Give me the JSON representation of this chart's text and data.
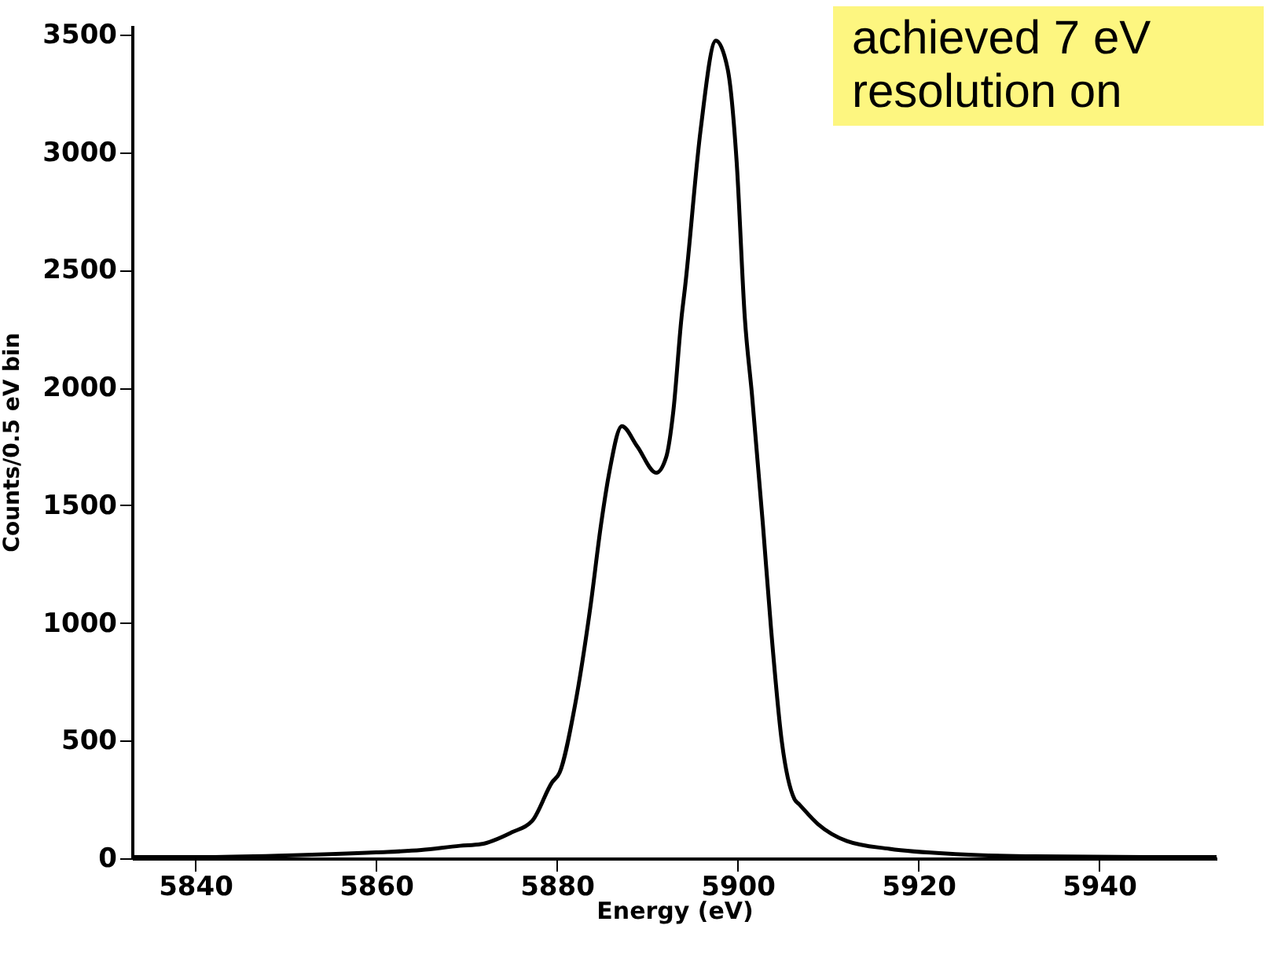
{
  "chart_data": {
    "type": "line",
    "xlabel": "Energy (eV)",
    "ylabel": "Counts/0.5 eV bin",
    "annotations": [
      "achieved 7 eV resolution on"
    ],
    "x": [
      5833,
      5840,
      5850,
      5860,
      5865,
      5869.3,
      5871.6,
      5875,
      5877.3,
      5879.5,
      5880.3,
      5882,
      5883.7,
      5884.9,
      5885.8,
      5887.2,
      5888.9,
      5891,
      5892.1,
      5892.9,
      5893.8,
      5894.2,
      5895.9,
      5897.6,
      5898.9,
      5899.9,
      5900.8,
      5901.6,
      5902.8,
      5903.7,
      5904.9,
      5906.3,
      5906.8,
      5908.9,
      5912.1,
      5916.8,
      5924.6,
      5933,
      5945,
      5953
    ],
    "series": [
      {
        "color": "#000000",
        "values": [
          5,
          5,
          12,
          25,
          35,
          53,
          60,
          110,
          160,
          324,
          363,
          647,
          1063,
          1420,
          1638,
          1836,
          1750,
          1638,
          1704,
          1902,
          2298,
          2430,
          3091,
          3474,
          3355,
          2959,
          2298,
          1968,
          1420,
          978,
          495,
          251,
          230,
          145,
          73,
          40,
          17,
          8,
          5,
          5
        ]
      }
    ],
    "xlim": [
      5833,
      5953
    ],
    "xticks": [
      5840,
      5860,
      5880,
      5900,
      5920,
      5940
    ],
    "ylim": [
      0,
      3540
    ],
    "yticks": [
      0,
      500,
      1000,
      1500,
      2000,
      2500,
      3000,
      3500
    ],
    "grid": false,
    "marker": "none",
    "line_style": "solid"
  }
}
